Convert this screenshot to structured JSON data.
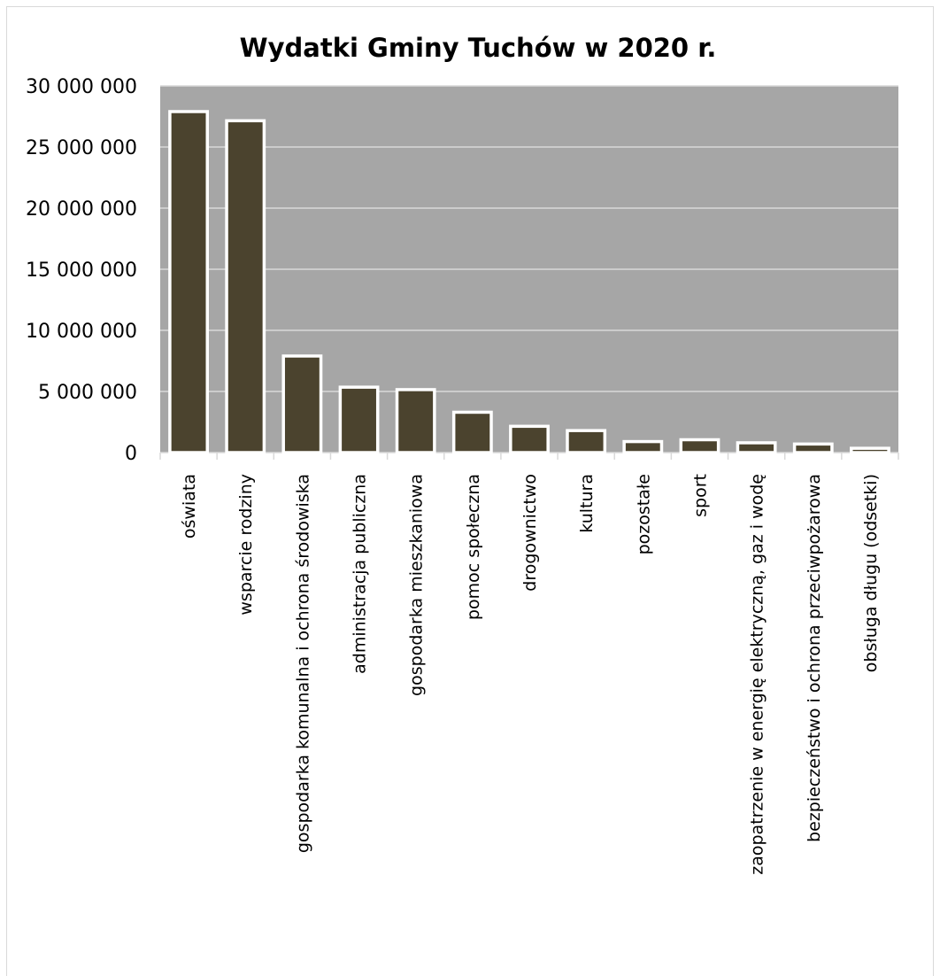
{
  "chart_data": {
    "type": "bar",
    "title": "Wydatki Gminy Tuchów w 2020 r.",
    "xlabel": "",
    "ylabel": "",
    "categories": [
      "oświata",
      "wsparcie rodziny",
      "gospodarka komunalna i ochrona środowiska",
      "administracja publiczna",
      "gospodarka mieszkaniowa",
      "pomoc społeczna",
      "drogownictwo",
      "kultura",
      "pozostałe",
      "sport",
      "zaopatrzenie w energię elektryczną, gaz i wodę",
      "bezpieczeństwo i ochrona przeciwpożarowa",
      "obsługa długu (odsetki)"
    ],
    "values": [
      27900000,
      27150000,
      7900000,
      5350000,
      5150000,
      3300000,
      2150000,
      1800000,
      900000,
      1050000,
      800000,
      700000,
      350000
    ],
    "ylim": [
      0,
      30000000
    ],
    "yticks": [
      0,
      5000000,
      10000000,
      15000000,
      20000000,
      25000000,
      30000000
    ],
    "ytick_labels": [
      "0",
      "5 000 000",
      "10 000 000",
      "15 000 000",
      "20 000 000",
      "25 000 000",
      "30 000 000"
    ],
    "grid": true,
    "legend": "none",
    "colors": {
      "bar_fill": "#4b432e",
      "bar_edge": "#ffffff",
      "plot_background": "#a6a6a6",
      "gridline": "#d9d9d9",
      "axis": "#d9d9d9"
    }
  }
}
